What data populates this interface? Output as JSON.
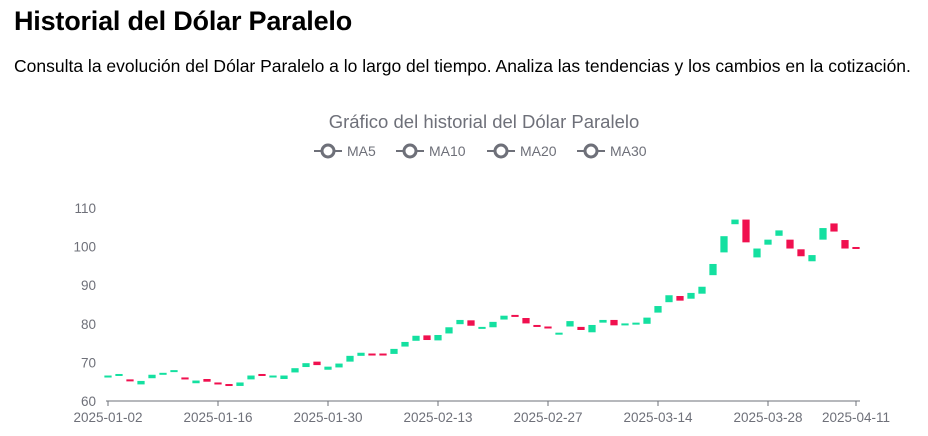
{
  "header": {
    "title": "Historial del Dólar Paralelo",
    "description": "Consulta la evolución del Dólar Paralelo a lo largo del tiempo. Analiza las tendencias y los cambios en la cotización."
  },
  "colors": {
    "up": "#14e0a0",
    "down": "#f0104f",
    "axis": "#6e7079",
    "legend_icon": "#6e7079"
  },
  "chart_data": {
    "type": "candlestick",
    "title": "Gráfico del historial del Dólar Paralelo",
    "legend": [
      "MA5",
      "MA10",
      "MA20",
      "MA30"
    ],
    "legend_position": "top-center",
    "ylim": [
      60,
      110
    ],
    "y_ticks": [
      60,
      70,
      80,
      90,
      100,
      110
    ],
    "x_ticks": [
      "2025-01-02",
      "2025-01-16",
      "2025-01-30",
      "2025-02-13",
      "2025-02-27",
      "2025-03-14",
      "2025-03-28",
      "2025-04-11"
    ],
    "grid": false,
    "candles": [
      [
        66.3,
        66.6
      ],
      [
        66.6,
        67.0
      ],
      [
        65.6,
        65.4
      ],
      [
        64.3,
        65.2
      ],
      [
        65.9,
        66.8
      ],
      [
        66.9,
        67.3
      ],
      [
        67.6,
        68.0
      ],
      [
        66.1,
        65.6
      ],
      [
        64.6,
        65.3
      ],
      [
        65.7,
        65.0
      ],
      [
        64.8,
        64.5
      ],
      [
        64.4,
        64.2
      ],
      [
        63.9,
        64.8
      ],
      [
        65.6,
        66.6
      ],
      [
        67.0,
        66.7
      ],
      [
        66.3,
        66.6
      ],
      [
        65.7,
        66.6
      ],
      [
        67.4,
        68.5
      ],
      [
        68.8,
        69.8
      ],
      [
        70.2,
        69.3
      ],
      [
        68.1,
        68.9
      ],
      [
        68.7,
        69.7
      ],
      [
        70.2,
        71.7
      ],
      [
        71.7,
        72.5
      ],
      [
        72.3,
        72.0
      ],
      [
        72.3,
        71.8
      ],
      [
        72.2,
        73.5
      ],
      [
        74.1,
        75.3
      ],
      [
        75.6,
        76.9
      ],
      [
        77.0,
        75.8
      ],
      [
        75.7,
        77.1
      ],
      [
        77.5,
        79.1
      ],
      [
        79.9,
        81.0
      ],
      [
        80.9,
        79.5
      ],
      [
        78.7,
        79.2
      ],
      [
        79.1,
        80.5
      ],
      [
        81.1,
        82.1
      ],
      [
        82.3,
        81.9
      ],
      [
        81.5,
        80.1
      ],
      [
        79.7,
        79.2
      ],
      [
        79.3,
        79.1
      ],
      [
        77.6,
        77.7
      ],
      [
        79.3,
        80.7
      ],
      [
        79.2,
        78.4
      ],
      [
        77.8,
        79.7
      ],
      [
        80.3,
        81.0
      ],
      [
        81.0,
        79.6
      ],
      [
        79.6,
        80.1
      ],
      [
        80.1,
        80.3
      ],
      [
        80.0,
        81.6
      ],
      [
        82.9,
        84.6
      ],
      [
        85.6,
        87.4
      ],
      [
        87.2,
        86.0
      ],
      [
        86.5,
        88.0
      ],
      [
        87.8,
        89.6
      ],
      [
        92.6,
        95.5
      ],
      [
        98.5,
        102.7
      ],
      [
        105.8,
        107.0
      ],
      [
        107.0,
        101.1
      ],
      [
        97.2,
        99.5
      ],
      [
        100.5,
        101.8
      ],
      [
        102.8,
        104.2
      ],
      [
        101.8,
        99.5
      ],
      [
        99.3,
        97.5
      ],
      [
        96.2,
        97.8
      ],
      [
        101.8,
        104.8
      ],
      [
        106.0,
        103.9
      ],
      [
        101.7,
        99.5
      ],
      [
        99.9,
        99.7
      ]
    ]
  }
}
